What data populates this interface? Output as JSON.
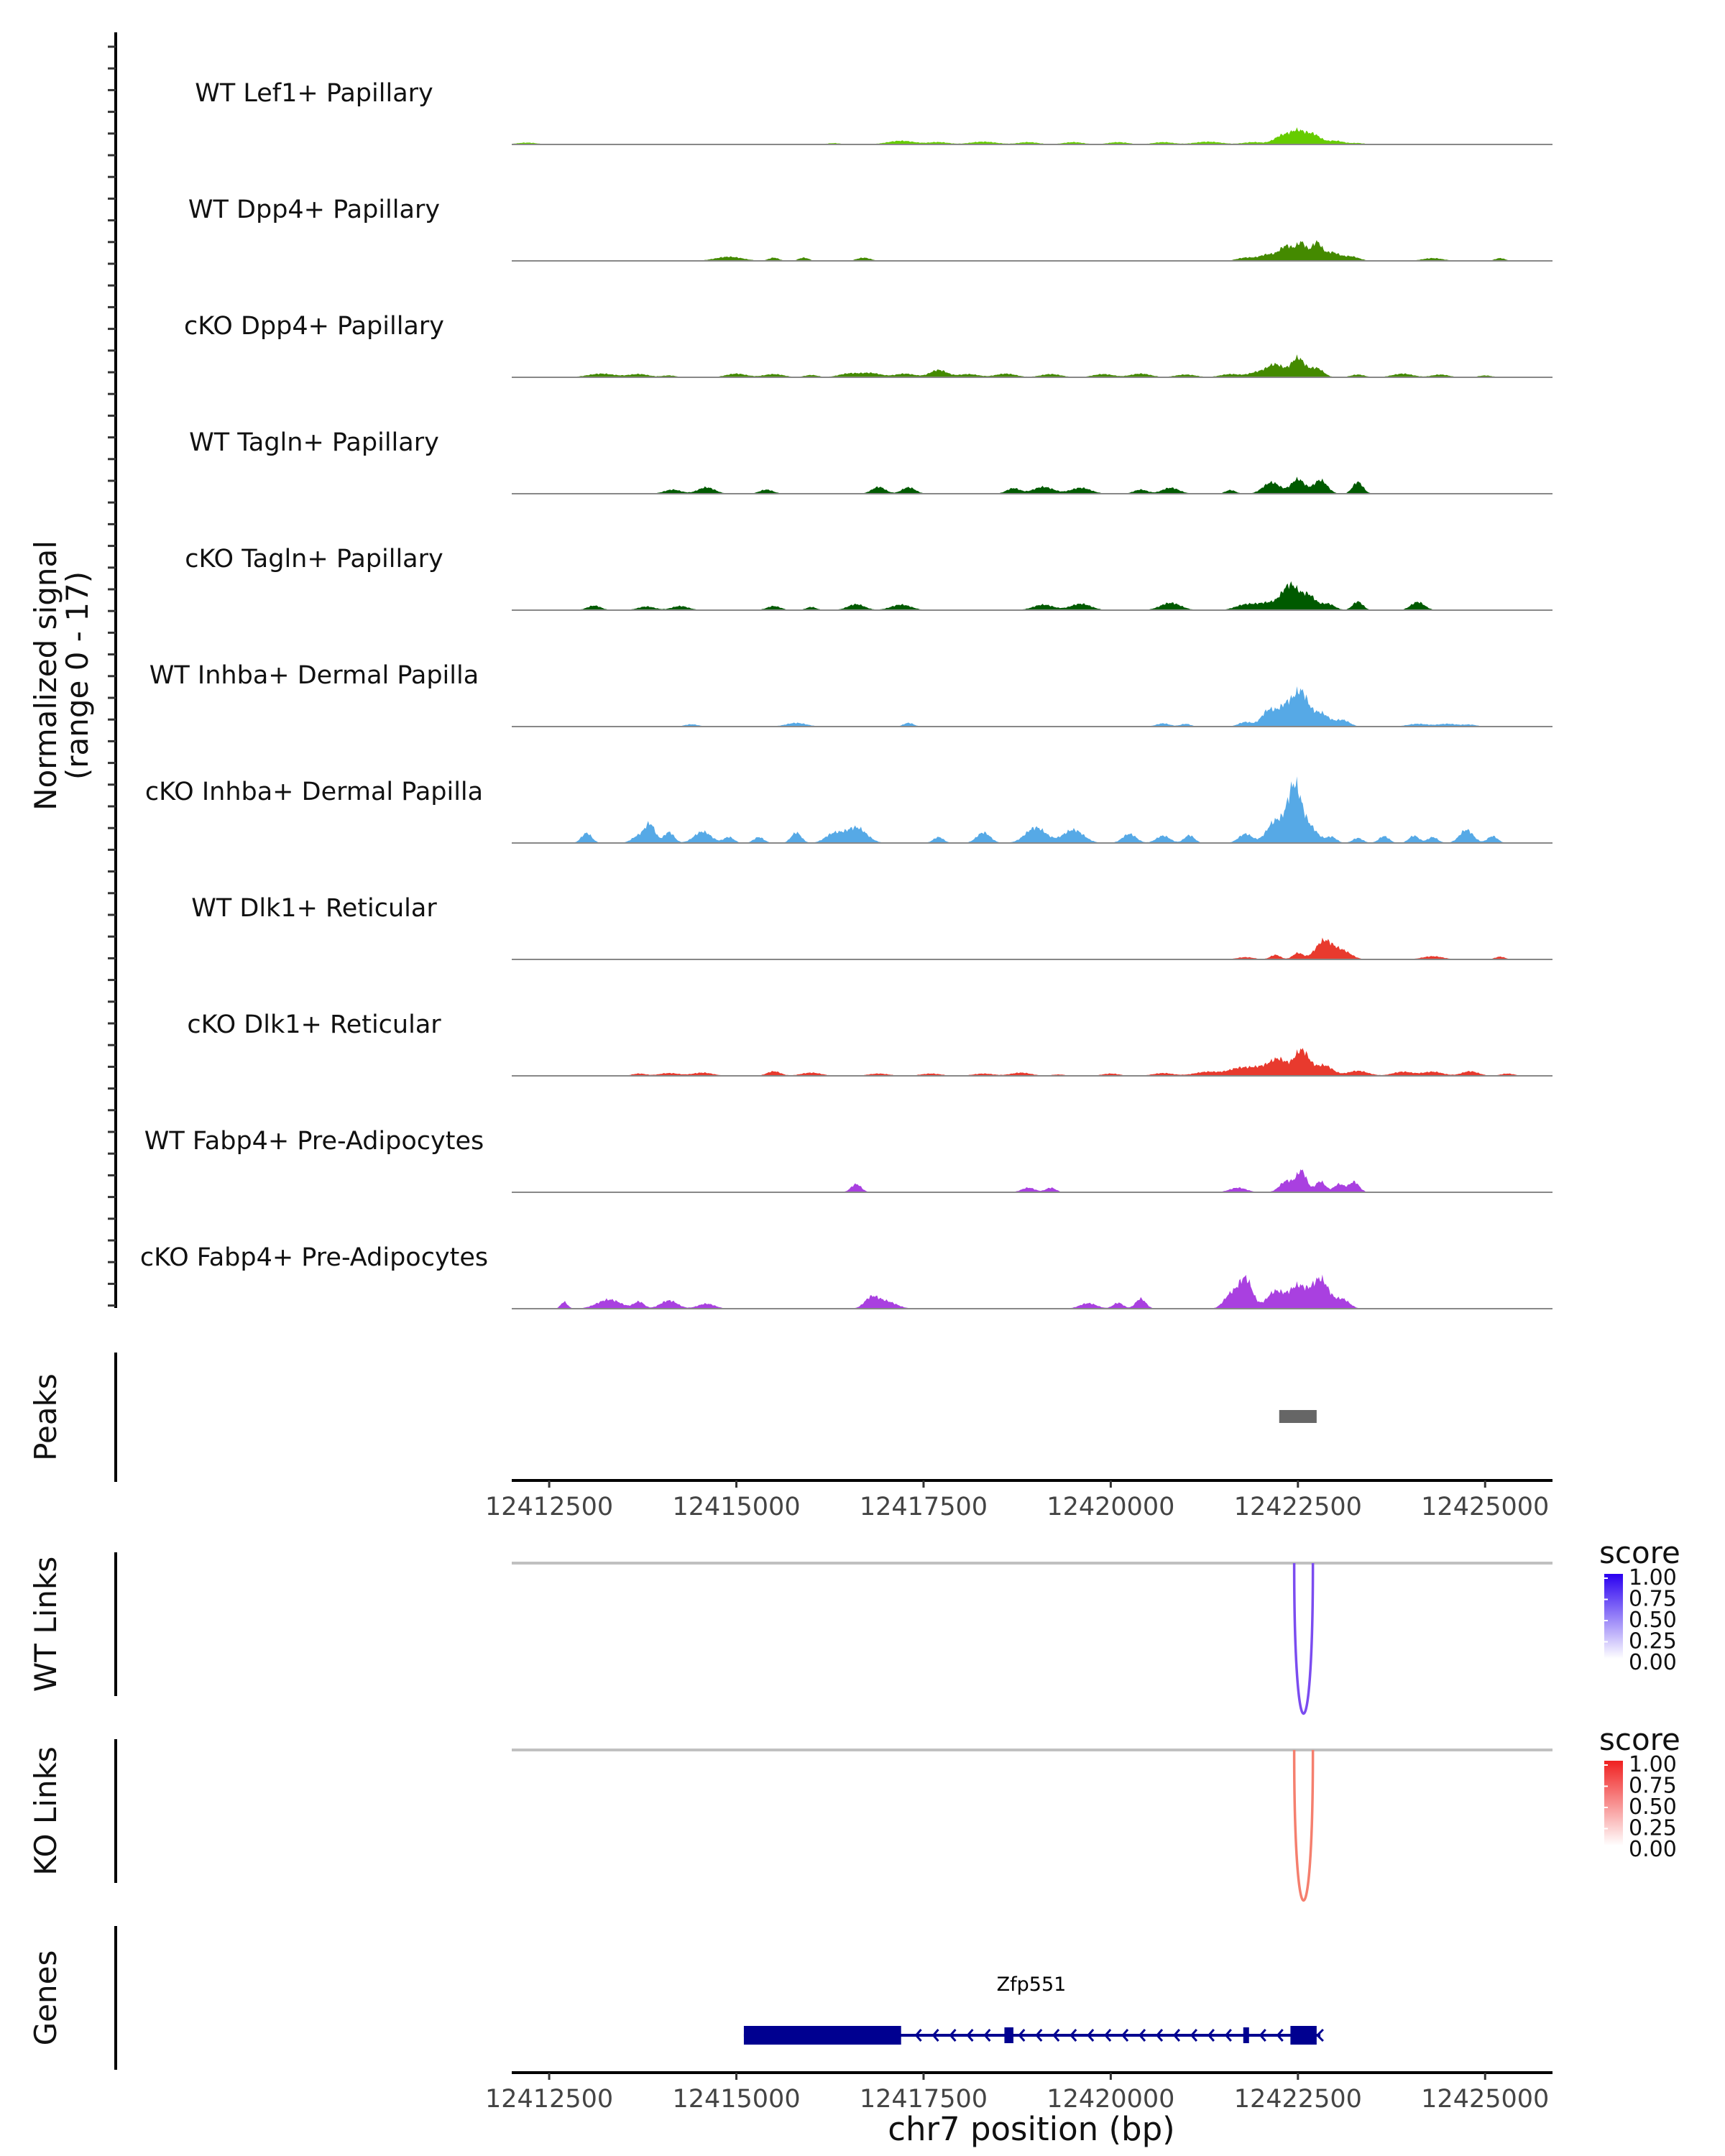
{
  "chart_data": {
    "type": "area",
    "title": "",
    "region": "chr7:12412000-12425900",
    "x_range": [
      12412000,
      12425900
    ],
    "coverage": {
      "ylabel_line1": "Normalized signal",
      "ylabel_line2": "(range 0 - 17)",
      "ylim": [
        0,
        17
      ],
      "tracks": [
        {
          "name": "WT Lef1+ Papillary",
          "color": "#66cc00",
          "peaks": [
            [
              12412200,
              0.4,
              300
            ],
            [
              12416300,
              0.3,
              200
            ],
            [
              12417200,
              0.8,
              400
            ],
            [
              12417700,
              0.5,
              300
            ],
            [
              12418300,
              0.6,
              400
            ],
            [
              12418900,
              0.5,
              300
            ],
            [
              12419500,
              0.5,
              300
            ],
            [
              12420100,
              0.5,
              300
            ],
            [
              12420700,
              0.5,
              300
            ],
            [
              12421300,
              0.6,
              400
            ],
            [
              12421900,
              0.5,
              300
            ],
            [
              12422300,
              2.0,
              250
            ],
            [
              12422500,
              2.5,
              200
            ],
            [
              12422700,
              2.2,
              220
            ],
            [
              12423000,
              0.8,
              250
            ],
            [
              12423300,
              0.3,
              200
            ]
          ]
        },
        {
          "name": "WT Dpp4+ Papillary",
          "color": "#448a00",
          "peaks": [
            [
              12414900,
              0.9,
              400
            ],
            [
              12415500,
              0.7,
              150
            ],
            [
              12415900,
              0.7,
              150
            ],
            [
              12416700,
              0.7,
              200
            ],
            [
              12421800,
              0.7,
              250
            ],
            [
              12422100,
              1.4,
              250
            ],
            [
              12422350,
              3.2,
              200
            ],
            [
              12422550,
              3.8,
              150
            ],
            [
              12422750,
              4.0,
              150
            ],
            [
              12422950,
              1.8,
              200
            ],
            [
              12423200,
              1.0,
              250
            ],
            [
              12424300,
              0.6,
              300
            ],
            [
              12425200,
              0.6,
              150
            ]
          ]
        },
        {
          "name": "cKO Dpp4+ Papillary",
          "color": "#448a00",
          "peaks": [
            [
              12413200,
              0.8,
              400
            ],
            [
              12413700,
              0.7,
              300
            ],
            [
              12414100,
              0.4,
              200
            ],
            [
              12415000,
              0.8,
              300
            ],
            [
              12415500,
              0.7,
              300
            ],
            [
              12416000,
              0.5,
              200
            ],
            [
              12416500,
              0.8,
              300
            ],
            [
              12416800,
              0.9,
              300
            ],
            [
              12417250,
              0.8,
              300
            ],
            [
              12417700,
              1.6,
              250
            ],
            [
              12418100,
              0.7,
              300
            ],
            [
              12418600,
              0.8,
              300
            ],
            [
              12419200,
              0.7,
              300
            ],
            [
              12419900,
              0.7,
              300
            ],
            [
              12420400,
              0.8,
              300
            ],
            [
              12421000,
              0.6,
              300
            ],
            [
              12421600,
              0.7,
              300
            ],
            [
              12421950,
              1.0,
              250
            ],
            [
              12422200,
              2.8,
              250
            ],
            [
              12422500,
              4.2,
              200
            ],
            [
              12422750,
              2.0,
              200
            ],
            [
              12423300,
              0.6,
              200
            ],
            [
              12423900,
              0.8,
              300
            ],
            [
              12424400,
              0.6,
              250
            ],
            [
              12425000,
              0.4,
              200
            ]
          ]
        },
        {
          "name": "WT Tagln+ Papillary",
          "color": "#005a00",
          "peaks": [
            [
              12414150,
              0.9,
              250
            ],
            [
              12414600,
              1.4,
              250
            ],
            [
              12415400,
              0.9,
              200
            ],
            [
              12416900,
              1.5,
              200
            ],
            [
              12417300,
              1.4,
              200
            ],
            [
              12418700,
              1.2,
              200
            ],
            [
              12419100,
              1.5,
              300
            ],
            [
              12419600,
              1.3,
              300
            ],
            [
              12420400,
              0.9,
              200
            ],
            [
              12420800,
              1.3,
              250
            ],
            [
              12421600,
              0.8,
              150
            ],
            [
              12422150,
              2.5,
              250
            ],
            [
              12422500,
              3.2,
              200
            ],
            [
              12422800,
              3.0,
              200
            ],
            [
              12423300,
              2.6,
              150
            ]
          ]
        },
        {
          "name": "cKO Tagln+ Papillary",
          "color": "#005a00",
          "peaks": [
            [
              12413100,
              1.0,
              200
            ],
            [
              12413800,
              0.8,
              250
            ],
            [
              12414250,
              0.9,
              250
            ],
            [
              12415500,
              0.9,
              200
            ],
            [
              12416000,
              0.7,
              150
            ],
            [
              12416600,
              1.3,
              250
            ],
            [
              12417200,
              1.2,
              300
            ],
            [
              12419100,
              1.2,
              300
            ],
            [
              12419600,
              1.4,
              300
            ],
            [
              12420800,
              1.6,
              300
            ],
            [
              12421800,
              1.2,
              300
            ],
            [
              12422100,
              1.5,
              300
            ],
            [
              12422400,
              5.5,
              250
            ],
            [
              12422650,
              3.0,
              200
            ],
            [
              12422900,
              1.4,
              200
            ],
            [
              12423300,
              1.9,
              150
            ],
            [
              12424100,
              1.8,
              200
            ]
          ]
        },
        {
          "name": "WT Inhba+ Dermal Papilla",
          "color": "#56a9e6",
          "peaks": [
            [
              12414400,
              0.5,
              200
            ],
            [
              12415800,
              0.8,
              300
            ],
            [
              12417300,
              0.8,
              150
            ],
            [
              12420700,
              0.7,
              200
            ],
            [
              12421000,
              0.6,
              150
            ],
            [
              12421800,
              1.0,
              200
            ],
            [
              12422100,
              3.3,
              200
            ],
            [
              12422350,
              4.8,
              250
            ],
            [
              12422550,
              6.6,
              200
            ],
            [
              12422800,
              3.0,
              250
            ],
            [
              12423100,
              1.4,
              200
            ],
            [
              12424100,
              0.6,
              300
            ],
            [
              12424500,
              0.6,
              300
            ],
            [
              12424800,
              0.4,
              200
            ]
          ]
        },
        {
          "name": "cKO Inhba+ Dermal Papilla",
          "color": "#56a9e6",
          "peaks": [
            [
              12413000,
              2.2,
              150
            ],
            [
              12413700,
              1.6,
              200
            ],
            [
              12413850,
              3.9,
              150
            ],
            [
              12414100,
              2.4,
              150
            ],
            [
              12414550,
              2.5,
              250
            ],
            [
              12414900,
              1.3,
              150
            ],
            [
              12415300,
              1.3,
              150
            ],
            [
              12415800,
              2.3,
              150
            ],
            [
              12416300,
              2.0,
              250
            ],
            [
              12416600,
              3.4,
              300
            ],
            [
              12417700,
              1.3,
              150
            ],
            [
              12418300,
              2.3,
              200
            ],
            [
              12419000,
              3.4,
              300
            ],
            [
              12419500,
              2.9,
              300
            ],
            [
              12420250,
              2.0,
              200
            ],
            [
              12420700,
              1.6,
              200
            ],
            [
              12421050,
              1.7,
              150
            ],
            [
              12421800,
              2.0,
              200
            ],
            [
              12422200,
              4.8,
              250
            ],
            [
              12422450,
              12.0,
              200
            ],
            [
              12422650,
              3.5,
              250
            ],
            [
              12422950,
              1.3,
              150
            ],
            [
              12423300,
              1.1,
              150
            ],
            [
              12423650,
              1.5,
              150
            ],
            [
              12424050,
              1.6,
              150
            ],
            [
              12424300,
              1.3,
              150
            ],
            [
              12424750,
              2.9,
              200
            ],
            [
              12425100,
              1.5,
              150
            ]
          ]
        },
        {
          "name": "WT Dlk1+ Reticular",
          "color": "#e83a2e",
          "peaks": [
            [
              12421800,
              0.5,
              250
            ],
            [
              12422200,
              1.0,
              150
            ],
            [
              12422500,
              1.4,
              150
            ],
            [
              12422850,
              4.1,
              250
            ],
            [
              12423100,
              1.8,
              250
            ],
            [
              12424300,
              0.7,
              300
            ],
            [
              12425200,
              0.6,
              150
            ]
          ]
        },
        {
          "name": "cKO Dlk1+ Reticular",
          "color": "#e83a2e",
          "peaks": [
            [
              12413700,
              0.5,
              200
            ],
            [
              12414100,
              0.6,
              300
            ],
            [
              12414550,
              0.7,
              300
            ],
            [
              12415500,
              1.0,
              200
            ],
            [
              12416000,
              0.7,
              300
            ],
            [
              12416900,
              0.5,
              300
            ],
            [
              12417600,
              0.5,
              300
            ],
            [
              12418300,
              0.5,
              300
            ],
            [
              12418800,
              0.7,
              300
            ],
            [
              12419300,
              0.3,
              200
            ],
            [
              12420000,
              0.5,
              250
            ],
            [
              12420700,
              0.6,
              300
            ],
            [
              12421300,
              0.9,
              400
            ],
            [
              12421700,
              1.4,
              300
            ],
            [
              12422000,
              1.8,
              350
            ],
            [
              12422250,
              3.2,
              250
            ],
            [
              12422550,
              5.6,
              220
            ],
            [
              12422850,
              2.3,
              250
            ],
            [
              12423300,
              1.1,
              300
            ],
            [
              12423900,
              0.9,
              300
            ],
            [
              12424300,
              0.9,
              300
            ],
            [
              12424800,
              1.0,
              250
            ],
            [
              12425300,
              0.5,
              200
            ]
          ]
        },
        {
          "name": "WT Fabp4+ Pre-Adipocytes",
          "color": "#a940e0",
          "peaks": [
            [
              12416600,
              1.8,
              150
            ],
            [
              12418900,
              1.0,
              200
            ],
            [
              12419200,
              1.0,
              150
            ],
            [
              12421700,
              1.0,
              250
            ],
            [
              12422350,
              2.5,
              200
            ],
            [
              12422550,
              4.6,
              150
            ],
            [
              12422800,
              2.4,
              150
            ],
            [
              12423050,
              1.8,
              150
            ],
            [
              12423250,
              2.3,
              150
            ]
          ]
        },
        {
          "name": "cKO Fabp4+ Pre-Adipocytes",
          "color": "#a940e0",
          "peaks": [
            [
              12412700,
              1.5,
              100
            ],
            [
              12413300,
              2.0,
              350
            ],
            [
              12413700,
              1.5,
              150
            ],
            [
              12414100,
              1.8,
              250
            ],
            [
              12414600,
              1.1,
              250
            ],
            [
              12416800,
              2.2,
              200
            ],
            [
              12417000,
              1.6,
              300
            ],
            [
              12419700,
              1.2,
              250
            ],
            [
              12420100,
              1.3,
              150
            ],
            [
              12420400,
              2.2,
              150
            ],
            [
              12421600,
              3.0,
              200
            ],
            [
              12421800,
              6.6,
              200
            ],
            [
              12422200,
              3.8,
              250
            ],
            [
              12422500,
              4.9,
              250
            ],
            [
              12422800,
              6.5,
              250
            ],
            [
              12423100,
              2.0,
              200
            ]
          ]
        }
      ]
    },
    "peaks_track": {
      "label": "Peaks",
      "intervals": [
        [
          12422250,
          12422750
        ]
      ]
    },
    "ticks": [
      "12412500",
      "12415000",
      "12417500",
      "12420000",
      "12422500",
      "12425000"
    ],
    "tick_values": [
      12412500,
      12415000,
      12417500,
      12420000,
      12422500,
      12425000
    ],
    "links": [
      {
        "label": "WT Links",
        "legend_title": "score",
        "color": "#7b4cf0",
        "low_color": "#ffffff",
        "high_color": "#2a00f0",
        "from": 12422450,
        "to": 12422700,
        "score": 0.75,
        "legend_labels": [
          "1.00",
          "0.75",
          "0.50",
          "0.25",
          "0.00"
        ]
      },
      {
        "label": "KO Links",
        "legend_title": "score",
        "color": "#f57f6e",
        "low_color": "#ffffff",
        "high_color": "#f02020",
        "from": 12422450,
        "to": 12422700,
        "score": 0.55,
        "legend_labels": [
          "1.00",
          "0.75",
          "0.50",
          "0.25",
          "0.00"
        ]
      }
    ],
    "genes": {
      "label": "Genes",
      "color": "#000090",
      "name": "Zfp551",
      "strand": "-",
      "start": 12415100,
      "end": 12422800,
      "exons": [
        [
          12415100,
          12417200
        ],
        [
          12418580,
          12418700
        ],
        [
          12421770,
          12421830
        ],
        [
          12422400,
          12422750
        ]
      ]
    },
    "xlabel": "chr7 position (bp)"
  }
}
